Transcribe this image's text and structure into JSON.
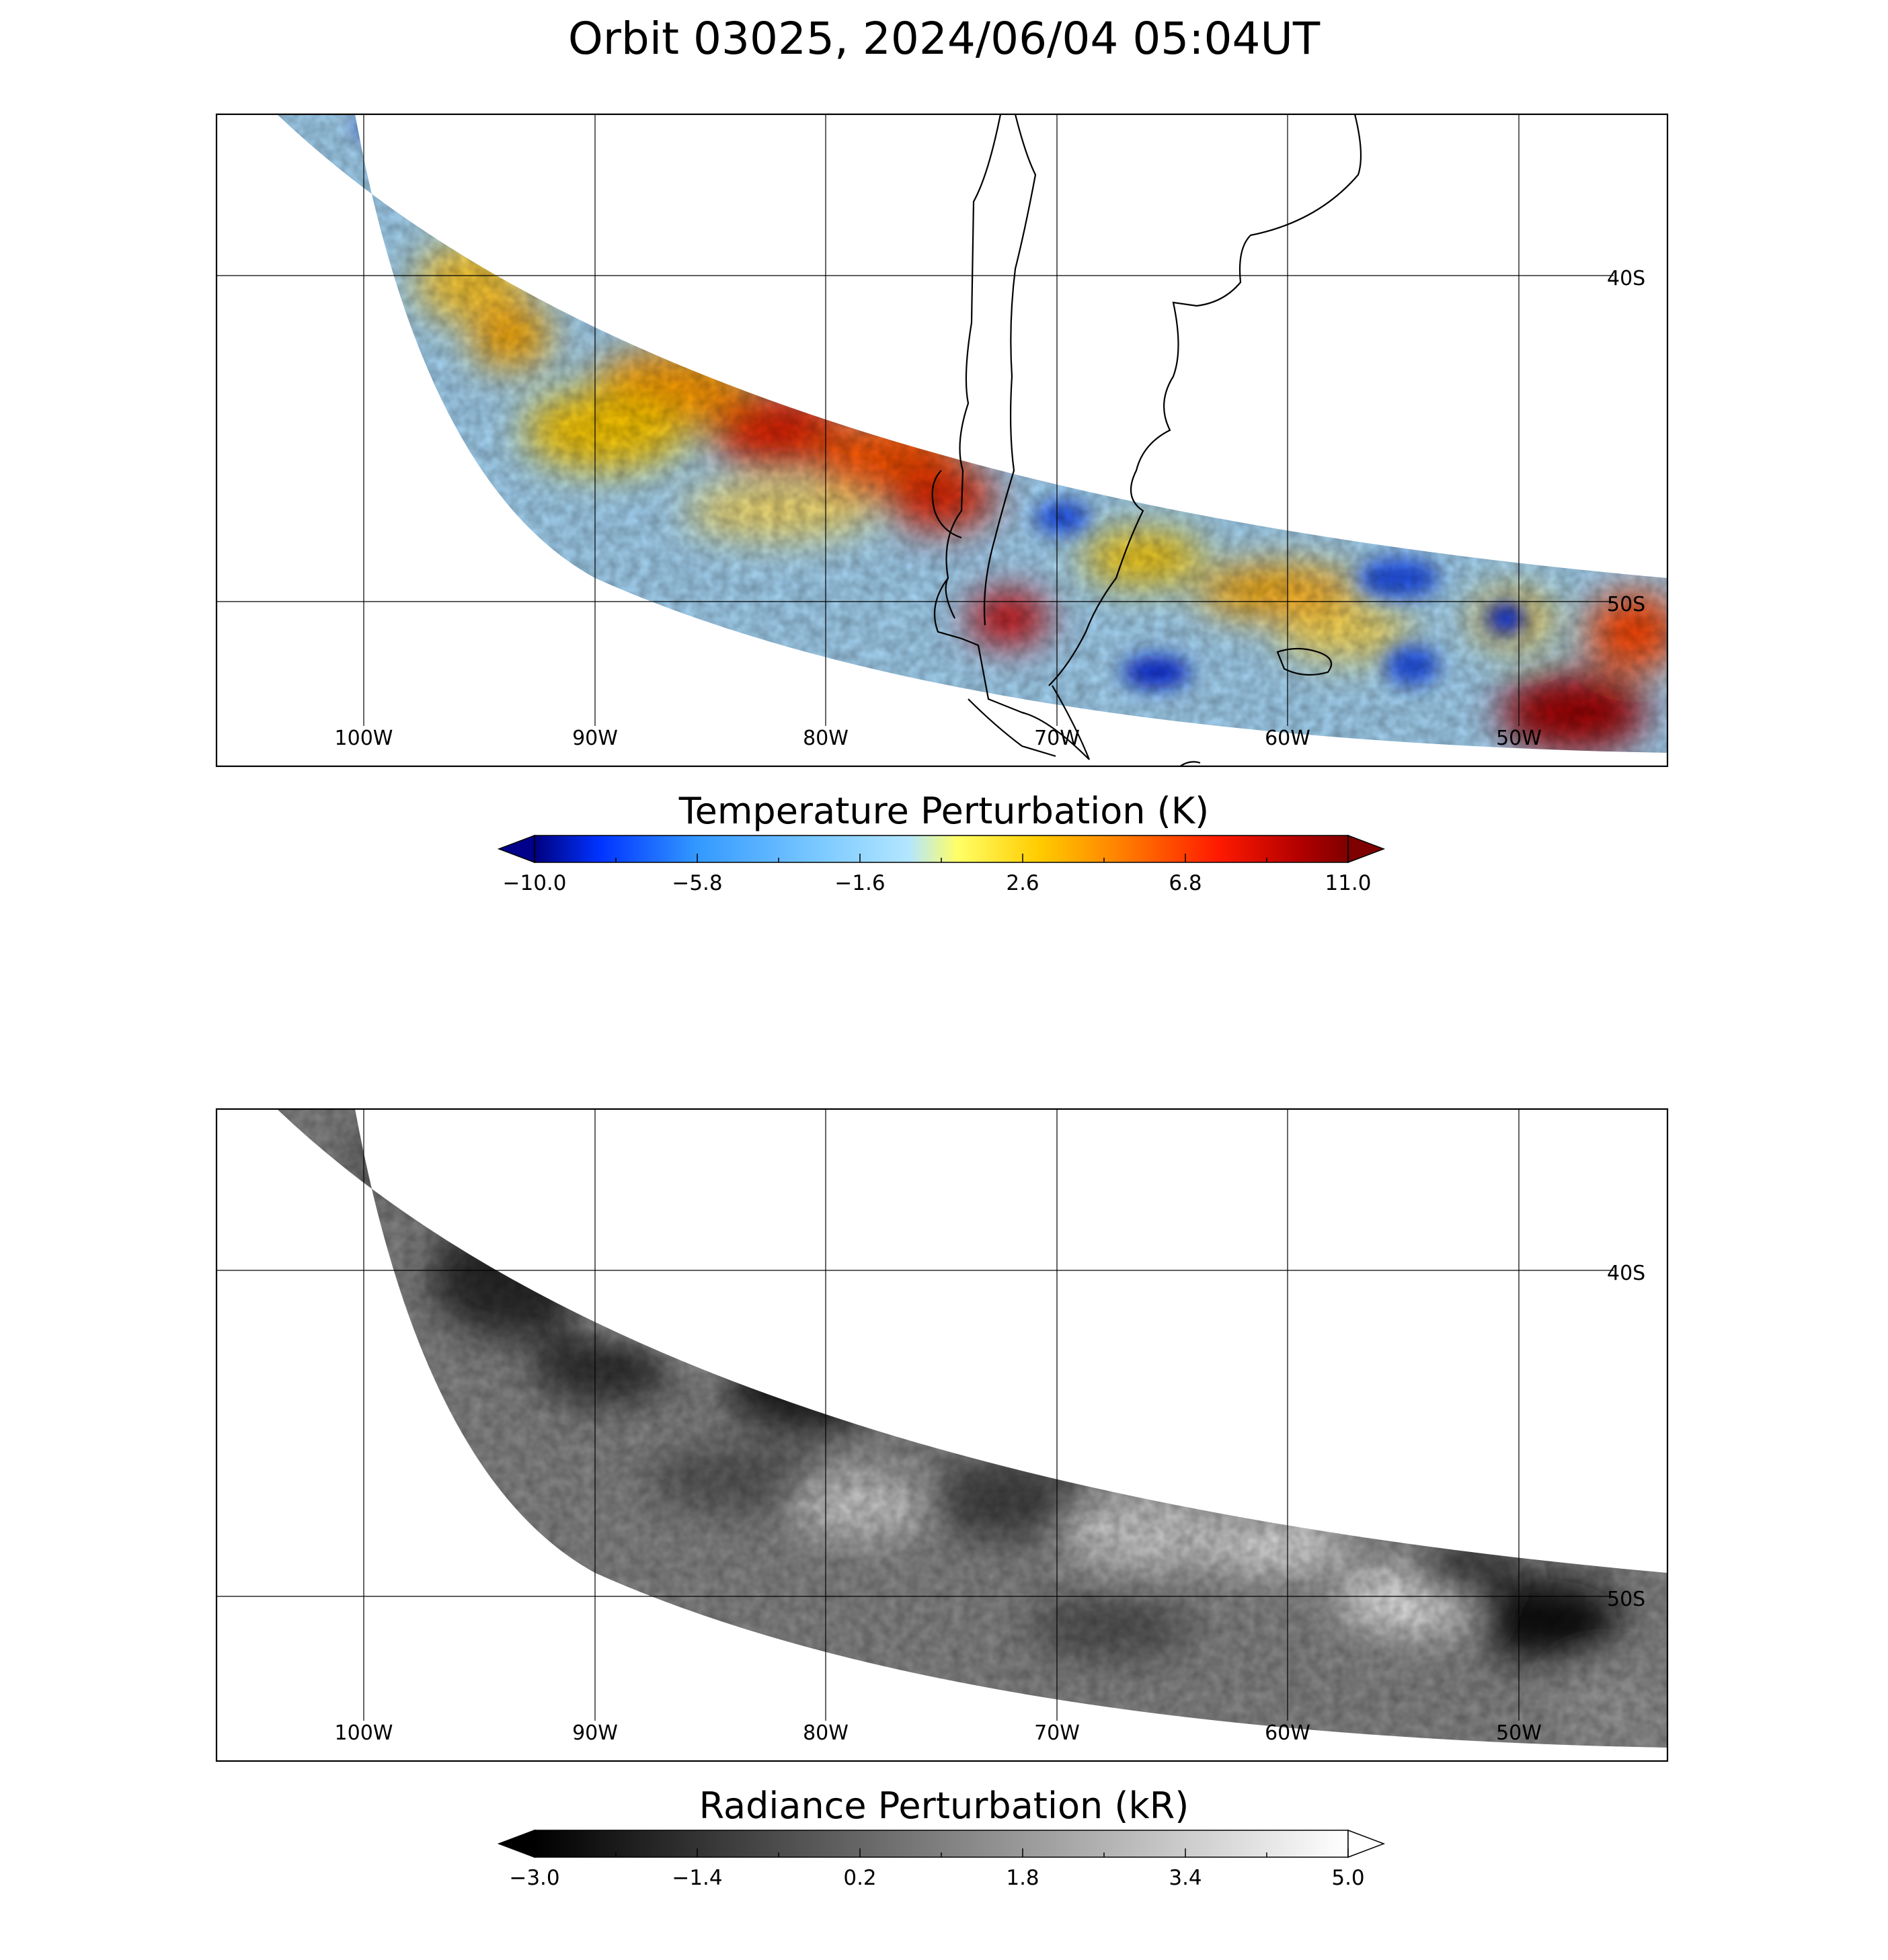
{
  "title": "Orbit 03025, 2024/06/04 05:04UT",
  "panels": [
    {
      "name": "temperature",
      "colorbar": {
        "label": "Temperature Perturbation (K)",
        "ticks": [
          "−10.0",
          "−5.8",
          "−1.6",
          "2.6",
          "6.8",
          "11.0"
        ],
        "stops": [
          "#00007f",
          "#0033ff",
          "#3399ff",
          "#80ccff",
          "#b3e6ff",
          "#ffff66",
          "#ffcc00",
          "#ff8000",
          "#ff1a00",
          "#b30000",
          "#7f0000"
        ]
      },
      "lat_labels": [
        "40S",
        "50S"
      ],
      "lon_labels": [
        "100W",
        "90W",
        "80W",
        "70W",
        "60W",
        "50W"
      ]
    },
    {
      "name": "radiance",
      "colorbar": {
        "label": "Radiance Perturbation (kR)",
        "ticks": [
          "−3.0",
          "−1.4",
          "0.2",
          "1.8",
          "3.4",
          "5.0"
        ],
        "stops": [
          "#000000",
          "#ffffff"
        ]
      },
      "lat_labels": [
        "40S",
        "50S"
      ],
      "lon_labels": [
        "100W",
        "90W",
        "80W",
        "70W",
        "60W",
        "50W"
      ]
    }
  ]
}
